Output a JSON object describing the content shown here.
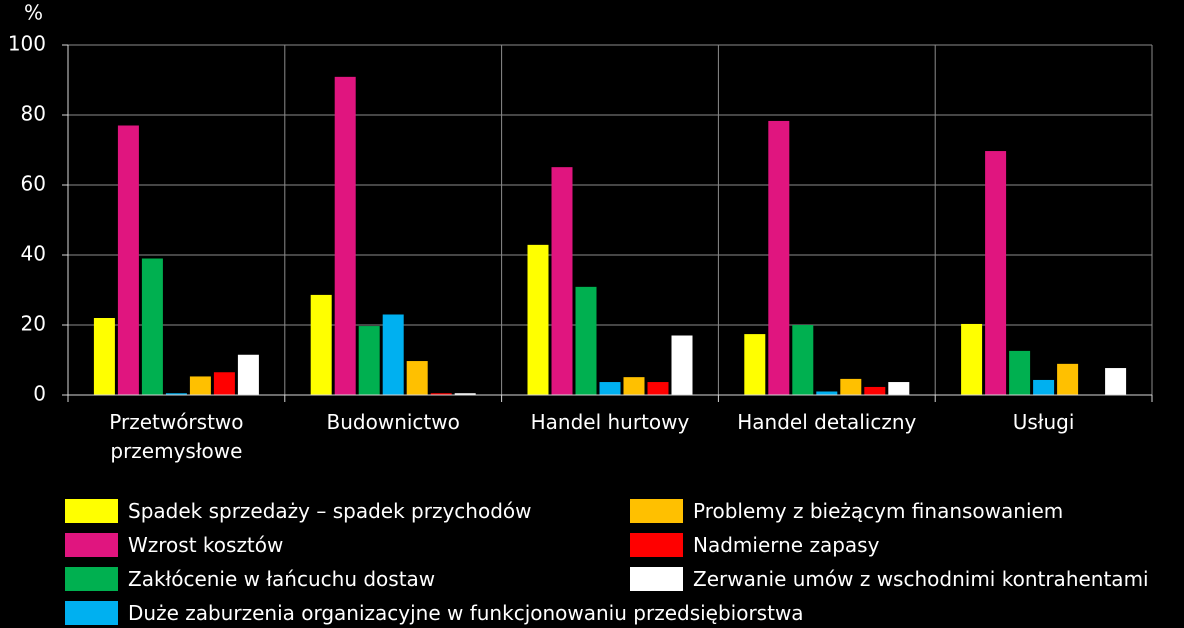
{
  "chart_data": {
    "type": "bar",
    "y_label": "%",
    "categories": [
      "Przetwórstwo przemysłowe",
      "Budownictwo",
      "Handel hurtowy",
      "Handel detaliczny",
      "Usługi"
    ],
    "series": [
      {
        "name": "Spadek sprzedaży – spadek przychodów",
        "color": "#ffff00",
        "values": [
          22,
          28.6,
          42.9,
          17.4,
          20.3
        ]
      },
      {
        "name": "Wzrost kosztów",
        "color": "#e0157f",
        "values": [
          77,
          90.9,
          65.1,
          78.3,
          69.7
        ]
      },
      {
        "name": "Zakłócenie w łańcuchu dostaw",
        "color": "#00b050",
        "values": [
          39,
          19.7,
          30.9,
          20,
          12.6
        ]
      },
      {
        "name": "Duże zaburzenia organizacyjne w funkcjonowaniu przedsiębiorstwa",
        "color": "#00b0f0",
        "values": [
          0.5,
          23,
          3.7,
          1,
          4.3
        ]
      },
      {
        "name": "Problemy z bieżącym finansowaniem",
        "color": "#ffc000",
        "values": [
          5.3,
          9.7,
          5.1,
          4.6,
          8.9
        ]
      },
      {
        "name": "Nadmierne zapasy",
        "color": "#ff0000",
        "values": [
          6.5,
          0.5,
          3.7,
          2.3,
          0
        ]
      },
      {
        "name": "Zerwanie umów z wschodnimi kontrahentami",
        "color": "#ffffff",
        "values": [
          11.5,
          0.5,
          17,
          3.7,
          7.7
        ]
      }
    ],
    "ylim": [
      0,
      100
    ],
    "yticks": [
      0,
      20,
      40,
      60,
      80,
      100
    ],
    "grid": true
  }
}
